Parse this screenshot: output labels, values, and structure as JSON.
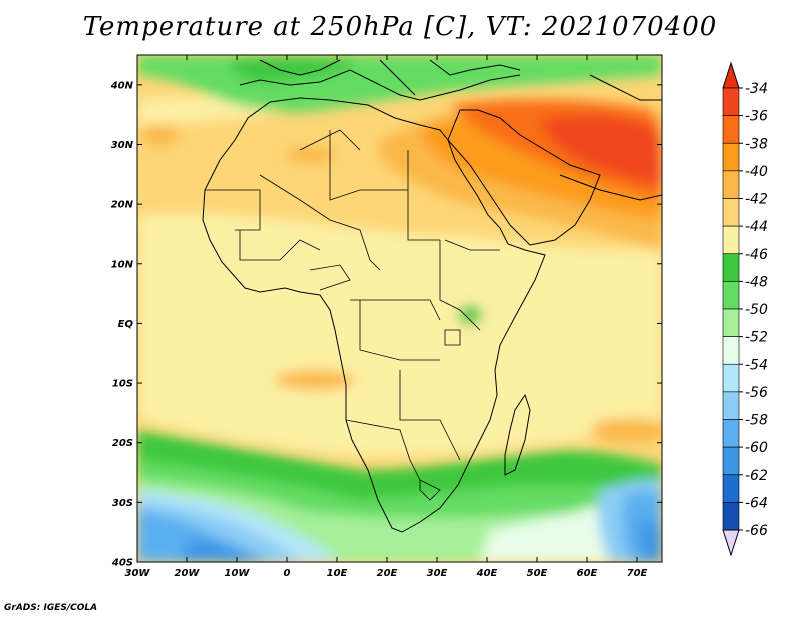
{
  "title": "Temperature at 250hPa [C], VT: 2021070400",
  "credit": "GrADS: IGES/COLA",
  "map": {
    "lon_range": [
      -30,
      75
    ],
    "lat_range": [
      -40,
      45
    ],
    "lon_ticks": [
      {
        "value": -30,
        "label": "30W"
      },
      {
        "value": -20,
        "label": "20W"
      },
      {
        "value": -10,
        "label": "10W"
      },
      {
        "value": 0,
        "label": "0"
      },
      {
        "value": 10,
        "label": "10E"
      },
      {
        "value": 20,
        "label": "20E"
      },
      {
        "value": 30,
        "label": "30E"
      },
      {
        "value": 40,
        "label": "40E"
      },
      {
        "value": 50,
        "label": "50E"
      },
      {
        "value": 60,
        "label": "60E"
      },
      {
        "value": 70,
        "label": "70E"
      }
    ],
    "lat_ticks": [
      {
        "value": 40,
        "label": "40N"
      },
      {
        "value": 30,
        "label": "30N"
      },
      {
        "value": 20,
        "label": "20N"
      },
      {
        "value": 10,
        "label": "10N"
      },
      {
        "value": 0,
        "label": "EQ"
      },
      {
        "value": -10,
        "label": "10S"
      },
      {
        "value": -20,
        "label": "20S"
      },
      {
        "value": -30,
        "label": "30S"
      },
      {
        "value": -40,
        "label": "40S"
      }
    ]
  },
  "colorbar": {
    "levels": [
      {
        "value": "-34",
        "color": "#f0461e"
      },
      {
        "value": "-36",
        "color": "#f96e12"
      },
      {
        "value": "-38",
        "color": "#fc9b1e"
      },
      {
        "value": "-40",
        "color": "#fbb848"
      },
      {
        "value": "-42",
        "color": "#fcd677"
      },
      {
        "value": "-44",
        "color": "#fcf0a4"
      },
      {
        "value": "-46",
        "color": "#3cc83c"
      },
      {
        "value": "-48",
        "color": "#64dc64"
      },
      {
        "value": "-50",
        "color": "#a6f09a"
      },
      {
        "value": "-52",
        "color": "#e8fde8"
      },
      {
        "value": "-54",
        "color": "#b4e6fa"
      },
      {
        "value": "-56",
        "color": "#8ccdf5"
      },
      {
        "value": "-58",
        "color": "#5aaff0"
      },
      {
        "value": "-60",
        "color": "#3c96e6"
      },
      {
        "value": "-62",
        "color": "#1e6ed2"
      },
      {
        "value": "-64",
        "color": "#1450b4"
      },
      {
        "value": "-66",
        "color": "#0a2882"
      }
    ],
    "top_color": "#e6320a",
    "bottom_color": "#e6d6fa"
  }
}
